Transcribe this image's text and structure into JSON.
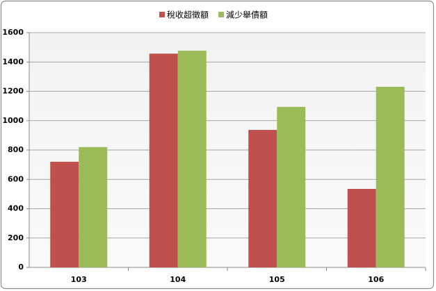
{
  "chart_data": {
    "type": "bar",
    "categories": [
      "103",
      "104",
      "105",
      "106"
    ],
    "series": [
      {
        "name": "稅收超徵額",
        "color": "#c0504d",
        "values": [
          720,
          1457,
          937,
          535
        ]
      },
      {
        "name": "減少舉債額",
        "color": "#9bbb59",
        "values": [
          820,
          1477,
          1094,
          1231
        ]
      }
    ],
    "ylim": [
      0,
      1600
    ],
    "yticks": [
      0,
      200,
      400,
      600,
      800,
      1000,
      1200,
      1400,
      1600
    ],
    "grid": true,
    "legend": "top"
  }
}
